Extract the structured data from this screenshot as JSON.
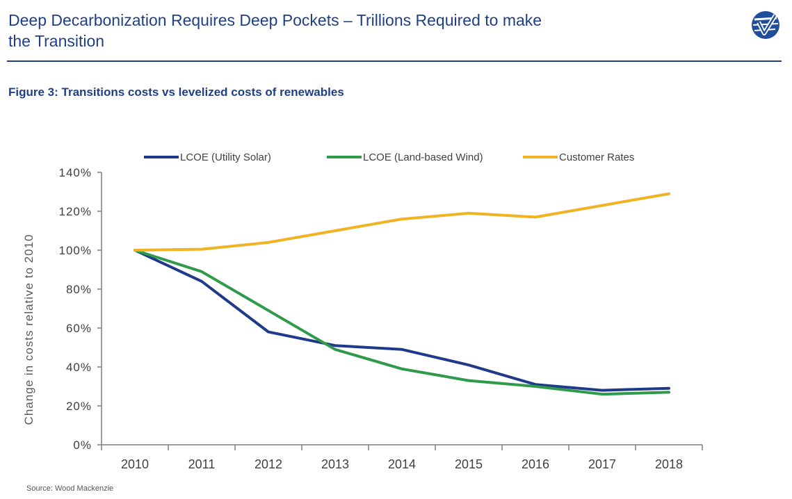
{
  "header": {
    "title_line1": "Deep Decarbonization Requires Deep Pockets – Trillions Required to make",
    "title_line2": "the Transition",
    "logo_icon": "check-circle-logo-icon"
  },
  "figure_title": "Figure 3: Transitions costs vs levelized costs of renewables",
  "source": "Source: Wood Mackenzie",
  "colors": {
    "brand": "#1f3f86",
    "axis": "#7f7f7f",
    "tick_text": "#404040"
  },
  "chart_data": {
    "type": "line",
    "title": "",
    "xlabel": "",
    "ylabel": "Change in costs relative to 2010",
    "categories": [
      "2010",
      "2011",
      "2012",
      "2013",
      "2014",
      "2015",
      "2016",
      "2017",
      "2018"
    ],
    "ylim": [
      0,
      140
    ],
    "yticks": [
      0,
      20,
      40,
      60,
      80,
      100,
      120,
      140
    ],
    "ytick_labels": [
      "0%",
      "20%",
      "40%",
      "60%",
      "80%",
      "100%",
      "120%",
      "140%"
    ],
    "grid": false,
    "legend_position": "top",
    "series": [
      {
        "name": "LCOE (Utility Solar)",
        "color": "#1f3a8a",
        "values": [
          100,
          84,
          58,
          51,
          49,
          41,
          31,
          28,
          29
        ]
      },
      {
        "name": "LCOE (Land-based Wind)",
        "color": "#2e9a4a",
        "values": [
          100,
          89,
          69,
          49,
          39,
          33,
          30,
          26,
          27
        ]
      },
      {
        "name": "Customer Rates",
        "color": "#f0b323",
        "values": [
          100,
          100.5,
          104,
          110,
          116,
          119,
          117,
          123,
          129
        ]
      }
    ]
  }
}
